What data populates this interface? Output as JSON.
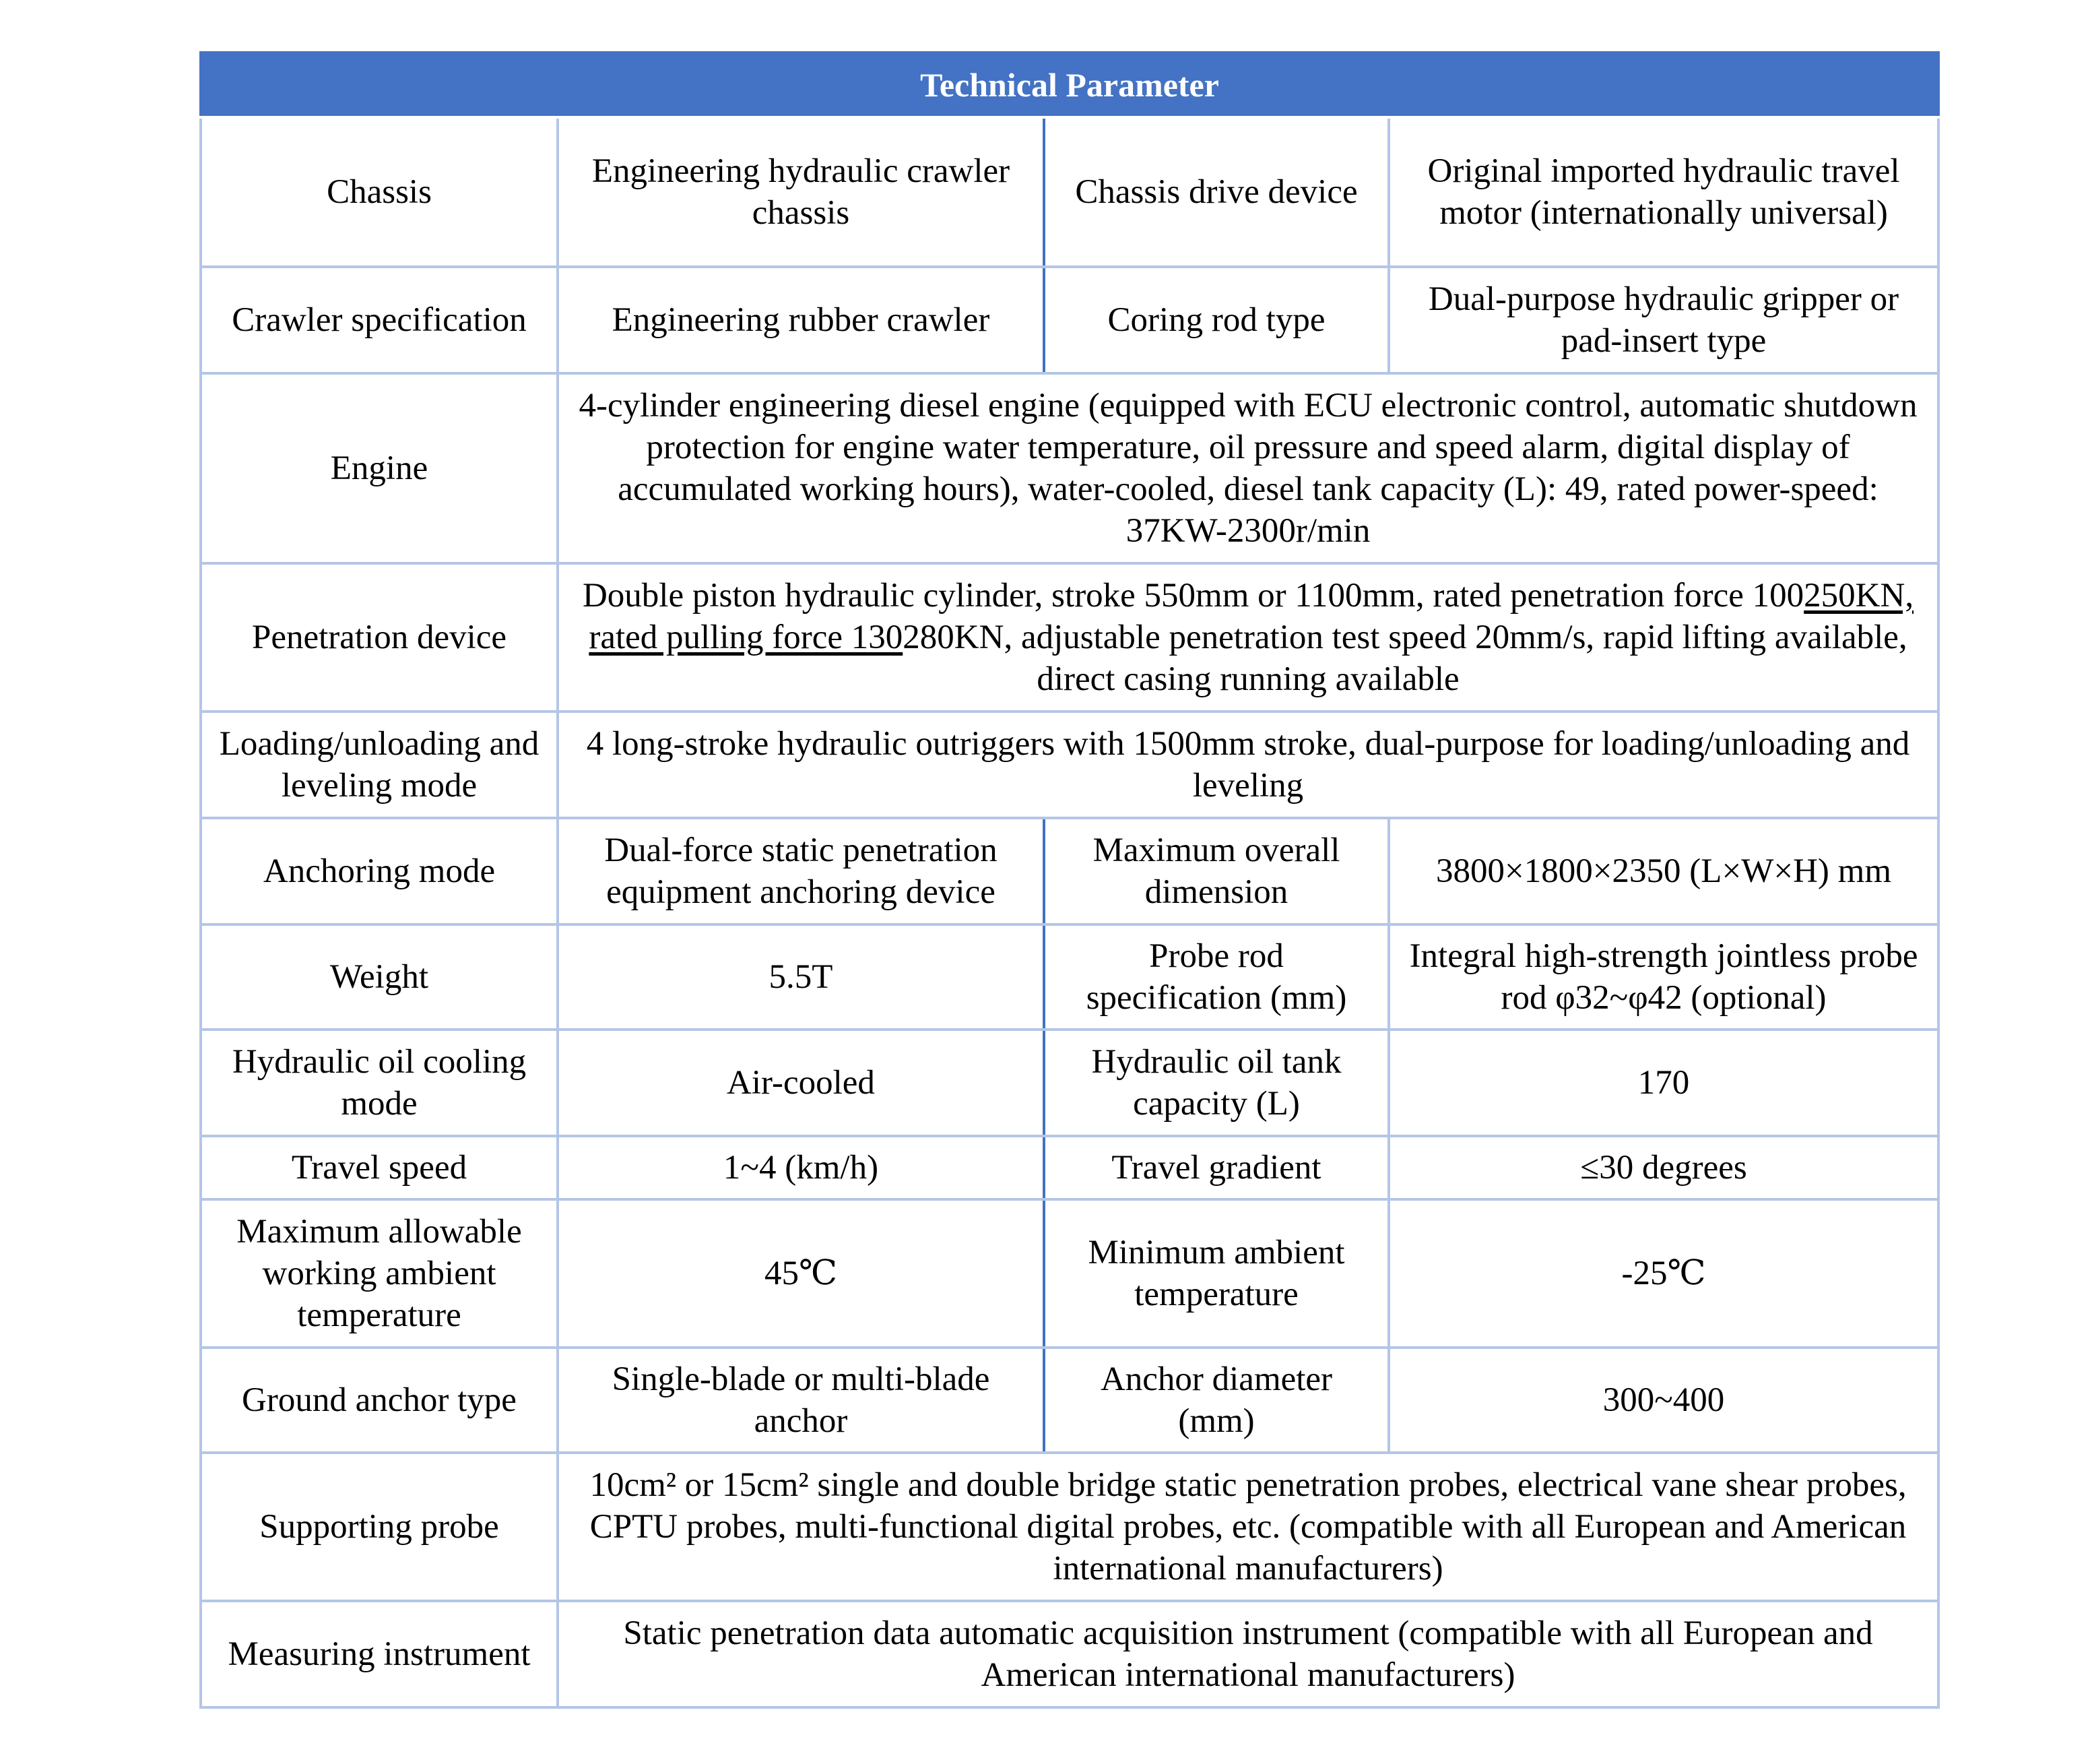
{
  "title": "Technical Parameter",
  "colors": {
    "header_bg": "#4472C4",
    "inner_border": "#B4C6E7"
  },
  "rows": [
    {
      "label": "Chassis",
      "v1": "Engineering hydraulic crawler chassis",
      "label2": "Chassis drive device",
      "v2": "Original imported hydraulic travel motor (internationally universal)"
    },
    {
      "label": "Crawler specification",
      "v1": "Engineering rubber crawler",
      "label2": "Coring rod type",
      "v2": "Dual-purpose hydraulic gripper or pad-insert type"
    },
    {
      "label": "Engine",
      "full": "4-cylinder engineering diesel engine (equipped with ECU electronic control, automatic shutdown protection for engine water temperature, oil pressure and speed alarm, digital display of accumulated working hours), water-cooled, diesel tank capacity (L): 49, rated power-speed: 37KW-2300r/min"
    },
    {
      "label": "Penetration device",
      "full_a": "Double piston hydraulic cylinder, stroke 550mm or 1100mm, rated penetration force 100",
      "full_u": "250KN, rated pulling force 130",
      "full_b": "280KN, adjustable penetration test speed 20mm/s, rapid lifting available, direct casing running available"
    },
    {
      "label": "Loading/unloading and leveling mode",
      "full": "4 long-stroke hydraulic outriggers with 1500mm stroke, dual-purpose for loading/unloading and leveling"
    },
    {
      "label": "Anchoring mode",
      "v1": "Dual-force static penetration equipment anchoring device",
      "label2": "Maximum overall dimension",
      "v2": "3800×1800×2350 (L×W×H) mm"
    },
    {
      "label": "Weight",
      "v1": "5.5T",
      "label2": "Probe rod specification (mm)",
      "v2": "Integral high-strength jointless probe rod φ32~φ42 (optional)"
    },
    {
      "label": "Hydraulic oil cooling mode",
      "v1": "Air-cooled",
      "label2": "Hydraulic oil tank capacity (L)",
      "v2": "170"
    },
    {
      "label": "Travel speed",
      "v1": "1~4 (km/h)",
      "label2": "Travel gradient",
      "v2": "≤30 degrees"
    },
    {
      "label": "Maximum allowable working ambient temperature",
      "v1": "45℃",
      "label2": "Minimum ambient temperature",
      "v2": "-25℃"
    },
    {
      "label": "Ground anchor type",
      "v1": "Single-blade or multi-blade anchor",
      "label2": "Anchor diameter (mm)",
      "v2": "300~400"
    },
    {
      "label": "Supporting probe",
      "full": "10cm² or 15cm² single and double bridge static penetration probes, electrical vane shear probes, CPTU probes, multi-functional digital probes, etc. (compatible with all European and American international manufacturers)"
    },
    {
      "label": "Measuring instrument",
      "full": "Static penetration data automatic acquisition instrument (compatible with all European and American international manufacturers)"
    }
  ]
}
